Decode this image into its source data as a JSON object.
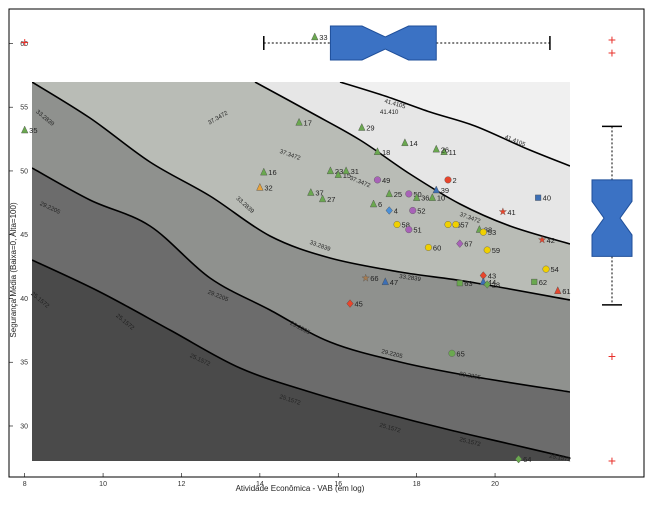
{
  "chart_data": {
    "type": "scatter",
    "title": "",
    "xlabel": "Atividade Econômica - VAB (em log)",
    "ylabel": "Segurança Média (Baixa=0, Alta=100)",
    "xlim": [
      7.6,
      23.8
    ],
    "ylim": [
      26.0,
      62.7
    ],
    "xticks": [
      8,
      10,
      12,
      14,
      16,
      18,
      20
    ],
    "yticks": [
      30,
      35,
      40,
      45,
      50,
      55,
      60
    ],
    "grid": false,
    "contour_levels": [
      {
        "label": "41.4105",
        "tag": "41.410",
        "fill": "#e6e6e6"
      },
      {
        "label": "37.3472",
        "fill": "#b9bcb6"
      },
      {
        "label": "33.2839",
        "fill": "#8f918e"
      },
      {
        "label": "29.2205",
        "fill": "#6c6c6c"
      },
      {
        "label": "25.1572",
        "fill": "#4a4a4a"
      }
    ],
    "points": [
      {
        "id": "33",
        "x": 15.4,
        "y": 60.5,
        "shape": "triangle",
        "color": "#6aa84f"
      },
      {
        "id": "1",
        "x": 17.7,
        "y": 59.5,
        "shape": "circle",
        "color": "#e8452c"
      },
      {
        "id": "35",
        "x": 8.0,
        "y": 53.2,
        "shape": "triangle",
        "color": "#6aa84f"
      },
      {
        "id": "17",
        "x": 15.0,
        "y": 53.8,
        "shape": "triangle",
        "color": "#6aa84f"
      },
      {
        "id": "29",
        "x": 16.6,
        "y": 53.4,
        "shape": "triangle",
        "color": "#6aa84f"
      },
      {
        "id": "14",
        "x": 17.7,
        "y": 52.2,
        "shape": "triangle",
        "color": "#6aa84f"
      },
      {
        "id": "18",
        "x": 17.0,
        "y": 51.5,
        "shape": "triangle",
        "color": "#6aa84f"
      },
      {
        "id": "11",
        "x": 18.7,
        "y": 51.5,
        "shape": "triangle",
        "color": "#6aa84f"
      },
      {
        "id": "26",
        "x": 18.5,
        "y": 51.7,
        "shape": "triangle",
        "color": "#6aa84f"
      },
      {
        "id": "16",
        "x": 14.1,
        "y": 49.9,
        "shape": "triangle",
        "color": "#6aa84f"
      },
      {
        "id": "23",
        "x": 15.8,
        "y": 50.0,
        "shape": "triangle",
        "color": "#6aa84f"
      },
      {
        "id": "15",
        "x": 16.0,
        "y": 49.7,
        "shape": "triangle",
        "color": "#6aa84f"
      },
      {
        "id": "31",
        "x": 16.2,
        "y": 50.0,
        "shape": "triangle",
        "color": "#6aa84f"
      },
      {
        "id": "32",
        "x": 14.0,
        "y": 48.7,
        "shape": "triangle",
        "color": "#e8a23a"
      },
      {
        "id": "37",
        "x": 15.3,
        "y": 48.3,
        "shape": "triangle",
        "color": "#6aa84f"
      },
      {
        "id": "27",
        "x": 15.6,
        "y": 47.8,
        "shape": "triangle",
        "color": "#6aa84f"
      },
      {
        "id": "49",
        "x": 17.0,
        "y": 49.3,
        "shape": "circle",
        "color": "#a862b8"
      },
      {
        "id": "25",
        "x": 17.3,
        "y": 48.2,
        "shape": "triangle",
        "color": "#6aa84f"
      },
      {
        "id": "50",
        "x": 17.8,
        "y": 48.2,
        "shape": "circle",
        "color": "#a862b8"
      },
      {
        "id": "2",
        "x": 18.8,
        "y": 49.3,
        "shape": "circle",
        "color": "#e8452c"
      },
      {
        "id": "39",
        "x": 18.5,
        "y": 48.5,
        "shape": "triangle",
        "color": "#3c6fb5"
      },
      {
        "id": "36",
        "x": 18.0,
        "y": 47.9,
        "shape": "triangle",
        "color": "#6aa84f"
      },
      {
        "id": "10",
        "x": 18.4,
        "y": 47.9,
        "shape": "triangle",
        "color": "#6aa84f"
      },
      {
        "id": "6",
        "x": 16.9,
        "y": 47.4,
        "shape": "triangle",
        "color": "#6aa84f"
      },
      {
        "id": "4",
        "x": 17.3,
        "y": 46.9,
        "shape": "diamond",
        "color": "#4a90d9"
      },
      {
        "id": "52",
        "x": 17.9,
        "y": 46.9,
        "shape": "circle",
        "color": "#a862b8"
      },
      {
        "id": "40",
        "x": 21.1,
        "y": 47.9,
        "shape": "square",
        "color": "#3c6fb5"
      },
      {
        "id": "41",
        "x": 20.2,
        "y": 46.8,
        "shape": "star",
        "color": "#e8452c"
      },
      {
        "id": "58",
        "x": 17.5,
        "y": 45.8,
        "shape": "circle",
        "color": "#f0d000"
      },
      {
        "id": "56",
        "x": 18.8,
        "y": 45.8,
        "shape": "circle",
        "color": "#f0d000"
      },
      {
        "id": "57",
        "x": 19.0,
        "y": 45.8,
        "shape": "circle",
        "color": "#f0d000"
      },
      {
        "id": "51",
        "x": 17.8,
        "y": 45.4,
        "shape": "circle",
        "color": "#a862b8"
      },
      {
        "id": "38",
        "x": 19.6,
        "y": 45.4,
        "shape": "triangle",
        "color": "#6aa84f"
      },
      {
        "id": "53",
        "x": 19.7,
        "y": 45.2,
        "shape": "circle",
        "color": "#f0d000"
      },
      {
        "id": "42",
        "x": 21.2,
        "y": 44.6,
        "shape": "star",
        "color": "#e8452c"
      },
      {
        "id": "67",
        "x": 19.1,
        "y": 44.3,
        "shape": "diamond",
        "color": "#a862b8"
      },
      {
        "id": "60",
        "x": 18.3,
        "y": 44.0,
        "shape": "circle",
        "color": "#f0d000"
      },
      {
        "id": "59",
        "x": 19.8,
        "y": 43.8,
        "shape": "circle",
        "color": "#f0d000"
      },
      {
        "id": "54",
        "x": 21.3,
        "y": 42.3,
        "shape": "circle",
        "color": "#f0d000"
      },
      {
        "id": "66",
        "x": 16.7,
        "y": 41.6,
        "shape": "star",
        "color": "#a67c52"
      },
      {
        "id": "47",
        "x": 17.2,
        "y": 41.3,
        "shape": "triangle",
        "color": "#3c6fb5"
      },
      {
        "id": "63",
        "x": 19.1,
        "y": 41.2,
        "shape": "square",
        "color": "#6aa84f"
      },
      {
        "id": "43",
        "x": 19.7,
        "y": 41.8,
        "shape": "diamond",
        "color": "#e8452c"
      },
      {
        "id": "44",
        "x": 19.7,
        "y": 41.3,
        "shape": "triangle",
        "color": "#3c6fb5"
      },
      {
        "id": "28",
        "x": 19.8,
        "y": 41.1,
        "shape": "diamond",
        "color": "#6aa84f"
      },
      {
        "id": "62",
        "x": 21.0,
        "y": 41.3,
        "shape": "square",
        "color": "#6aa84f"
      },
      {
        "id": "61",
        "x": 21.6,
        "y": 40.6,
        "shape": "triangle",
        "color": "#e8452c"
      },
      {
        "id": "45",
        "x": 16.3,
        "y": 39.6,
        "shape": "diamond",
        "color": "#e8452c"
      },
      {
        "id": "65",
        "x": 18.9,
        "y": 35.7,
        "shape": "circle",
        "color": "#6aa84f"
      },
      {
        "id": "64",
        "x": 20.6,
        "y": 27.4,
        "shape": "diamond",
        "color": "#6aa84f"
      }
    ],
    "boxplot_x": {
      "whisker_low": 14.1,
      "q1": 15.8,
      "median": 17.2,
      "q3": 18.5,
      "whisker_high": 21.4,
      "outliers": [
        8.0
      ]
    },
    "boxplot_y": {
      "whisker_low": 39.5,
      "q1": 43.3,
      "median": 46.3,
      "q3": 49.3,
      "whisker_high": 53.5,
      "outliers": [
        59.3,
        60.3,
        35.5,
        27.3
      ]
    }
  }
}
